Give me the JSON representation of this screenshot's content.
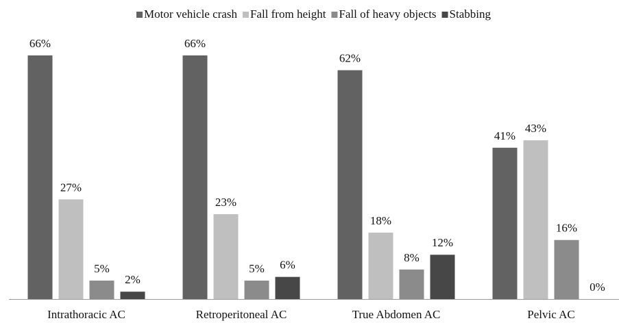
{
  "chart_data": {
    "type": "bar",
    "categories": [
      "Intrathoracic AC",
      "Retroperitoneal AC",
      "True Abdomen AC",
      "Pelvic AC"
    ],
    "series": [
      {
        "name": "Motor vehicle crash",
        "color": "#626262",
        "values": [
          66,
          66,
          62,
          41
        ],
        "value_labels": [
          "66%",
          "66%",
          "62%",
          "41%"
        ]
      },
      {
        "name": "Fall from height",
        "color": "#bfbfbf",
        "values": [
          27,
          23,
          18,
          43
        ],
        "value_labels": [
          "27%",
          "23%",
          "18%",
          "43%"
        ]
      },
      {
        "name": "Fall of heavy objects",
        "color": "#8b8b8b",
        "values": [
          5,
          5,
          8,
          16
        ],
        "value_labels": [
          "5%",
          "5%",
          "8%",
          "16%"
        ]
      },
      {
        "name": "Stabbing",
        "color": "#474747",
        "values": [
          2,
          6,
          12,
          0
        ],
        "value_labels": [
          "2%",
          "6%",
          "12%",
          "0%"
        ]
      }
    ],
    "legend": "top"
  }
}
